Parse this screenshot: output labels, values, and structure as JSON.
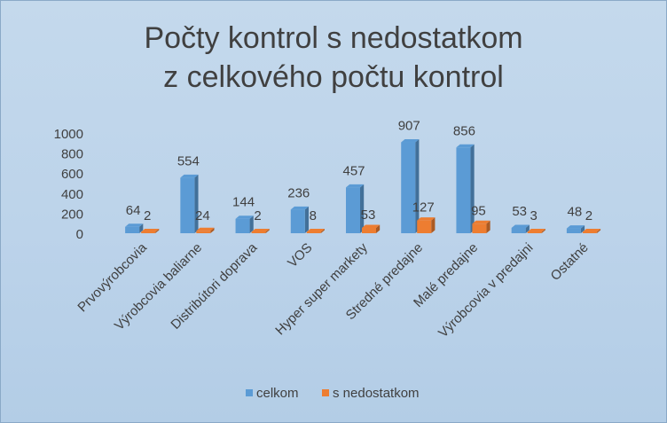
{
  "chart_data": {
    "type": "bar",
    "title": [
      "Počty kontrol s nedostatkom",
      "z celkového počtu kontrol"
    ],
    "categories": [
      "Prvovýrobcovia",
      "Výrobcovia baliarne",
      "Distribútori doprava",
      "VOS",
      "Hyper super markety",
      "Stredné predajne",
      "Malé predajne",
      "Výrobcovia v predajni",
      "Ostatné"
    ],
    "series": [
      {
        "name": "celkom",
        "values": [
          64,
          554,
          144,
          236,
          457,
          907,
          856,
          53,
          48
        ],
        "color": "#5b9bd5"
      },
      {
        "name": "s nedostatkom",
        "values": [
          2,
          24,
          2,
          8,
          53,
          127,
          95,
          3,
          2
        ],
        "color": "#ed7d31"
      }
    ],
    "yticks": [
      "0",
      "200",
      "400",
      "600",
      "800",
      "1000"
    ],
    "ylim": [
      0,
      1000
    ],
    "legend_position": "bottom",
    "style": "3d-column"
  }
}
